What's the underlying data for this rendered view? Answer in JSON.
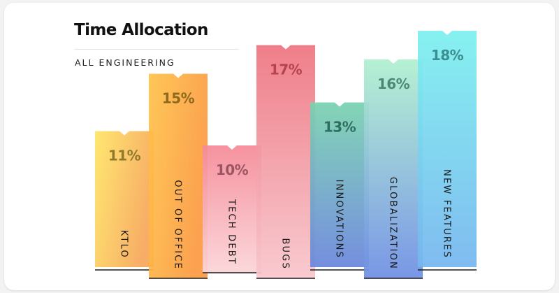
{
  "chart_data": {
    "type": "bar",
    "title": "Time Allocation",
    "subtitle": "ALL ENGINEERING",
    "categories": [
      "KTLO",
      "OUT OF OFFICE",
      "TECH DEBT",
      "BUGS",
      "INNOVATIONS",
      "GLOBALIZATION",
      "NEW FEATURES"
    ],
    "values": [
      11,
      15,
      10,
      17,
      13,
      16,
      18
    ],
    "value_labels": [
      "11%",
      "15%",
      "10%",
      "17%",
      "13%",
      "16%",
      "18%"
    ],
    "unit": "%",
    "colors": [
      [
        "#ffe566",
        "#f7a75a"
      ],
      [
        "#ffc24a",
        "#fb9a42"
      ],
      [
        "#f58a98",
        "#fbd5d8"
      ],
      [
        "#ee7581",
        "#f8c6cc"
      ],
      [
        "#79d2b0",
        "#6a86dc"
      ],
      [
        "#b0f0cf",
        "#6f8fe4"
      ],
      [
        "#7df0ef",
        "#76b6ef"
      ]
    ],
    "label_colors": [
      "#8f7a2c",
      "#8f6a1c",
      "#9b5560",
      "#b7434f",
      "#2f6f5e",
      "#4a8a72",
      "#3a8f90"
    ],
    "grid": false,
    "legend": "none"
  }
}
